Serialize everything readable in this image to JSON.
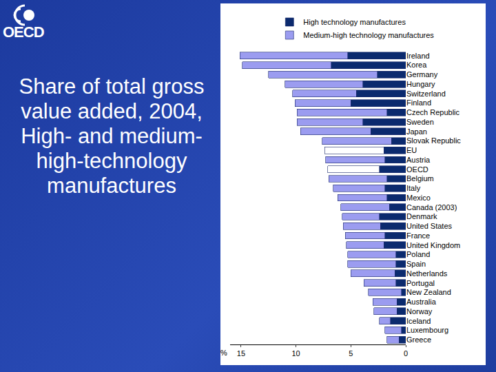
{
  "logo": "OECD",
  "slide_title": "Share of total gross value added, 2004, High- and medium-high-technology manufactures",
  "chart_data": {
    "type": "bar",
    "orientation": "horizontal",
    "stacked": true,
    "grid": false,
    "legend": "top",
    "xlabel": "%",
    "xlim": [
      16,
      0
    ],
    "xticks": [
      15,
      10,
      5,
      0
    ],
    "categories": [
      "Ireland",
      "Korea",
      "Germany",
      "Hungary",
      "Switzerland",
      "Finland",
      "Czech Republic",
      "Sweden",
      "Japan",
      "Slovak Republic",
      "EU",
      "Austria",
      "OECD",
      "Belgium",
      "Italy",
      "Mexico",
      "Canada (2003)",
      "Denmark",
      "United States",
      "France",
      "United Kingdom",
      "Poland",
      "Spain",
      "Netherlands",
      "Portugal",
      "New Zealand",
      "Australia",
      "Norway",
      "Iceland",
      "Luxembourg",
      "Greece"
    ],
    "series": [
      {
        "name": "High technology manufactures",
        "color": "#0b2a6e",
        "values": [
          5.3,
          6.8,
          2.6,
          3.9,
          4.5,
          5.0,
          1.7,
          3.9,
          3.2,
          1.3,
          2.0,
          1.9,
          2.4,
          1.7,
          1.9,
          1.7,
          1.5,
          2.4,
          2.3,
          1.9,
          2.0,
          0.9,
          0.9,
          1.0,
          0.9,
          0.4,
          0.8,
          0.8,
          1.4,
          0.4,
          0.6
        ]
      },
      {
        "name": "Medium-high technology manufactures",
        "colors": [
          "#9b9cf0",
          "#9b9cf0",
          "#9b9cf0",
          "#9b9cf0",
          "#9b9cf0",
          "#9b9cf0",
          "#9b9cf0",
          "#9b9cf0",
          "#9b9cf0",
          "#9b9cf0",
          "#ffffff",
          "#9b9cf0",
          "#ffffff",
          "#9b9cf0",
          "#9b9cf0",
          "#9b9cf0",
          "#9b9cf0",
          "#9b9cf0",
          "#9b9cf0",
          "#9b9cf0",
          "#9b9cf0",
          "#9b9cf0",
          "#9b9cf0",
          "#9b9cf0",
          "#9b9cf0",
          "#9b9cf0",
          "#9b9cf0",
          "#9b9cf0",
          "#9b9cf0",
          "#9b9cf0",
          "#9b9cf0"
        ],
        "values": [
          9.8,
          8.1,
          9.9,
          7.1,
          5.8,
          5.1,
          8.2,
          6.0,
          6.4,
          6.3,
          5.4,
          5.4,
          4.7,
          5.3,
          4.7,
          4.5,
          4.4,
          3.4,
          3.4,
          3.6,
          3.4,
          4.4,
          4.4,
          4.0,
          2.9,
          3.0,
          2.2,
          2.1,
          1.0,
          1.5,
          1.1
        ]
      }
    ]
  }
}
